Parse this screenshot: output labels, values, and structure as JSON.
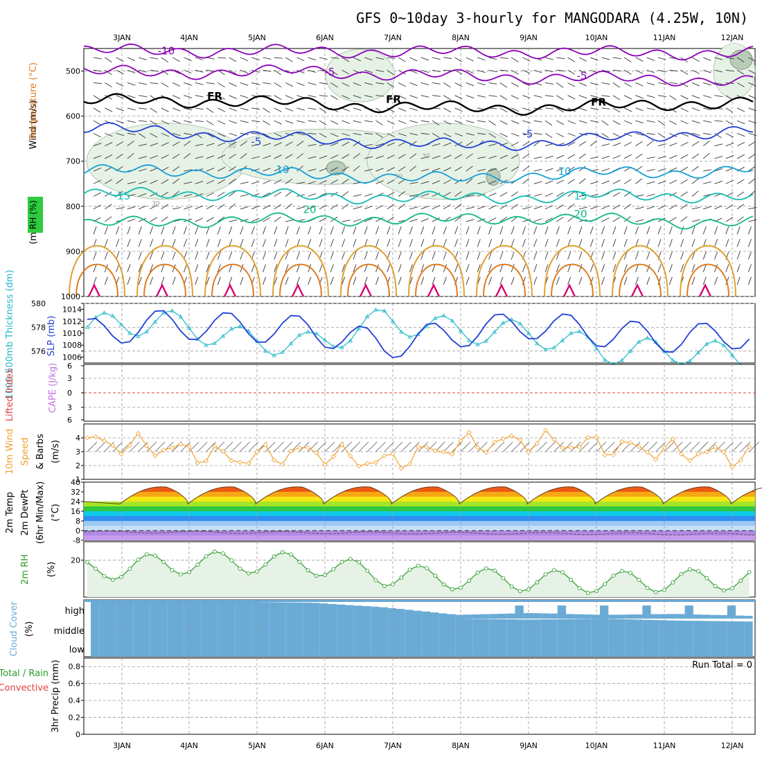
{
  "title": "GFS 0~10day 3-hourly for MANGODARA (4.25W, 10N)",
  "dates": [
    "3JAN",
    "4JAN",
    "5JAN",
    "6JAN",
    "7JAN",
    "8JAN",
    "9JAN",
    "10JAN",
    "11JAN",
    "12JAN"
  ],
  "panels": {
    "upper": {
      "ylabel_wind": "Wind (m/s)",
      "ylabel_temp": "Temperature (°C)",
      "ylabel_mb": "(millibars)",
      "rh_label": "RH (%)",
      "yticks": [
        "500",
        "600",
        "700",
        "800",
        "900",
        "1000"
      ],
      "contour_labels": [
        "-10",
        "-5",
        "-5",
        "FR",
        "FR",
        "FR",
        "-5",
        "-5",
        "10",
        "10",
        "-15",
        "15",
        "20",
        "20",
        "30",
        "30",
        "30",
        "30"
      ]
    },
    "pressure": {
      "ylabel_thk": "1000-500mb Thickness (dm)",
      "ylabel_slp": "SLP (mb)",
      "thk_ticks": [
        "580",
        "578",
        "576"
      ],
      "slp_ticks": [
        "1014",
        "1012",
        "1010",
        "1008",
        "1006"
      ]
    },
    "cape": {
      "ylabel_li": "Lifted Index",
      "ylabel_cape": "CAPE (J/kg)",
      "ticks": [
        "6",
        "3",
        "0",
        "3",
        "6"
      ]
    },
    "wind10": {
      "ylabel_wind": "10m Wind",
      "ylabel_speed": "Speed",
      "ylabel_barbs": "& Barbs",
      "ylabel_units": "(m/s)",
      "ticks": [
        "4",
        "3",
        "2",
        "1"
      ]
    },
    "temp2m": {
      "ylabel_temp": "2m Temp",
      "ylabel_dew": "2m DewPt",
      "ylabel_minmax": "(6hr Min/Max)",
      "ylabel_units": "(°C)",
      "ticks": [
        "40",
        "32",
        "24",
        "16",
        "8",
        "0",
        "-8"
      ]
    },
    "rh2m": {
      "ylabel": "2m RH",
      "ylabel_units": "(%)",
      "ticks": [
        "20"
      ]
    },
    "cloud": {
      "ylabel": "Cloud Cover",
      "ylabel_units": "(%)",
      "levels": [
        "high",
        "middle",
        "low"
      ]
    },
    "precip": {
      "ylabel_total": "Total / Rain",
      "ylabel_conv": "Convective",
      "ylabel": "3hr Precip (mm)",
      "ticks": [
        "0.8",
        "0.6",
        "0.4",
        "0.2",
        "0"
      ],
      "run_total": "Run Total = 0"
    }
  },
  "colors": {
    "temp_contours": [
      "#8a00b8",
      "#8a00b8",
      "#000000",
      "#1f3fd6",
      "#159ed6",
      "#12bcb0",
      "#10b88a",
      "#e0a030",
      "#e07a20",
      "#d80070"
    ],
    "slp": "#1f3fd6",
    "thickness": "#21b8c8",
    "wind_speed": "#f0a030",
    "rh_fill": "#e6f2e6",
    "rh_line": "#2a9a2a",
    "cloud": "#6aabd6",
    "cloud_gap": "#f4eff8",
    "lifted_index": "#e04040",
    "cape": "#c070e0"
  },
  "chart_data": [
    {
      "type": "line",
      "name": "pressure-time contour section",
      "title": "GFS 0~10day 3-hourly for MANGODARA (4.25W, 10N)",
      "ylabel": "(millibars)",
      "ylim": [
        450,
        1000
      ],
      "y_reversed": true,
      "x": [
        "3JAN",
        "4JAN",
        "5JAN",
        "6JAN",
        "7JAN",
        "8JAN",
        "9JAN",
        "10JAN",
        "11JAN",
        "12JAN"
      ],
      "series": [
        {
          "name": "-10",
          "values": [
            455,
            455,
            456,
            456,
            457,
            458,
            458,
            459,
            460,
            460
          ]
        },
        {
          "name": "-5",
          "values": [
            500,
            505,
            502,
            500,
            507,
            511,
            514,
            516,
            518,
            525
          ]
        },
        {
          "name": "FR",
          "values": [
            565,
            567,
            567,
            572,
            578,
            582,
            582,
            578,
            572,
            571
          ]
        },
        {
          "name": "-5",
          "values": [
            628,
            632,
            645,
            650,
            658,
            665,
            660,
            650,
            640,
            632
          ]
        },
        {
          "name": "10",
          "values": [
            722,
            720,
            725,
            730,
            734,
            740,
            730,
            726,
            725,
            718
          ]
        },
        {
          "name": "15",
          "values": [
            775,
            771,
            773,
            778,
            780,
            782,
            780,
            776,
            777,
            780
          ]
        },
        {
          "name": "20",
          "values": [
            840,
            835,
            830,
            830,
            828,
            830,
            825,
            830,
            835,
            836
          ]
        }
      ]
    },
    {
      "type": "line",
      "name": "1000-500mb Thickness (dm)",
      "ylim": [
        575,
        580
      ],
      "x": [
        "3JAN",
        "4JAN",
        "5JAN",
        "6JAN",
        "7JAN",
        "8JAN",
        "9JAN",
        "10JAN",
        "11JAN",
        "12JAN"
      ],
      "values": [
        578,
        578.5,
        577,
        576.5,
        578.6,
        577.7,
        577.5,
        576,
        576,
        575.5
      ]
    },
    {
      "type": "line",
      "name": "SLP (mb)",
      "ylim": [
        1005,
        1015
      ],
      "x": [
        "3JAN",
        "4JAN",
        "5JAN",
        "6JAN",
        "7JAN",
        "8JAN",
        "9JAN",
        "10JAN",
        "11JAN",
        "12JAN"
      ],
      "values": [
        1010,
        1011.5,
        1011,
        1010.5,
        1008,
        1010,
        1011.5,
        1010,
        1009,
        1010
      ]
    },
    {
      "type": "line",
      "name": "10m Wind Speed (m/s)",
      "ylim": [
        1,
        5
      ],
      "x": [
        "3JAN",
        "4JAN",
        "5JAN",
        "6JAN",
        "7JAN",
        "8JAN",
        "9JAN",
        "10JAN",
        "11JAN",
        "12JAN"
      ],
      "values": [
        3.7,
        3.3,
        2.5,
        3.0,
        2.2,
        3.5,
        3.8,
        3.4,
        3.0,
        2.6
      ]
    },
    {
      "type": "area",
      "name": "2m Temp (°C)",
      "ylim": [
        -8,
        40
      ],
      "x": [
        "3JAN",
        "4JAN",
        "5JAN",
        "6JAN",
        "7JAN",
        "8JAN",
        "9JAN",
        "10JAN",
        "11JAN",
        "12JAN"
      ],
      "values": [
        34,
        34,
        34,
        34,
        34,
        34,
        34,
        34,
        34,
        34
      ]
    },
    {
      "type": "area",
      "name": "2m RH (%)",
      "ylim": [
        0,
        30
      ],
      "x": [
        "3JAN",
        "4JAN",
        "5JAN",
        "6JAN",
        "7JAN",
        "8JAN",
        "9JAN",
        "10JAN",
        "11JAN",
        "12JAN"
      ],
      "values": [
        20,
        24,
        25,
        24,
        18,
        16,
        15,
        14,
        15,
        16
      ]
    },
    {
      "type": "heatmap",
      "name": "Cloud Cover (%)",
      "categories": [
        "high",
        "middle",
        "low"
      ],
      "x": [
        "3JAN",
        "4JAN",
        "5JAN",
        "6JAN",
        "7JAN",
        "8JAN",
        "9JAN",
        "10JAN",
        "11JAN",
        "12JAN"
      ],
      "values": [
        [
          90,
          90,
          90,
          85,
          60,
          20,
          30,
          20,
          25,
          15
        ],
        [
          100,
          100,
          100,
          100,
          100,
          100,
          95,
          100,
          90,
          85
        ],
        [
          100,
          100,
          100,
          100,
          100,
          100,
          100,
          100,
          100,
          100
        ]
      ]
    },
    {
      "type": "bar",
      "name": "3hr Precip (mm)",
      "ylim": [
        0,
        0.9
      ],
      "x": [
        "3JAN",
        "4JAN",
        "5JAN",
        "6JAN",
        "7JAN",
        "8JAN",
        "9JAN",
        "10JAN",
        "11JAN",
        "12JAN"
      ],
      "values": [
        0,
        0,
        0,
        0,
        0,
        0,
        0,
        0,
        0,
        0
      ]
    }
  ]
}
